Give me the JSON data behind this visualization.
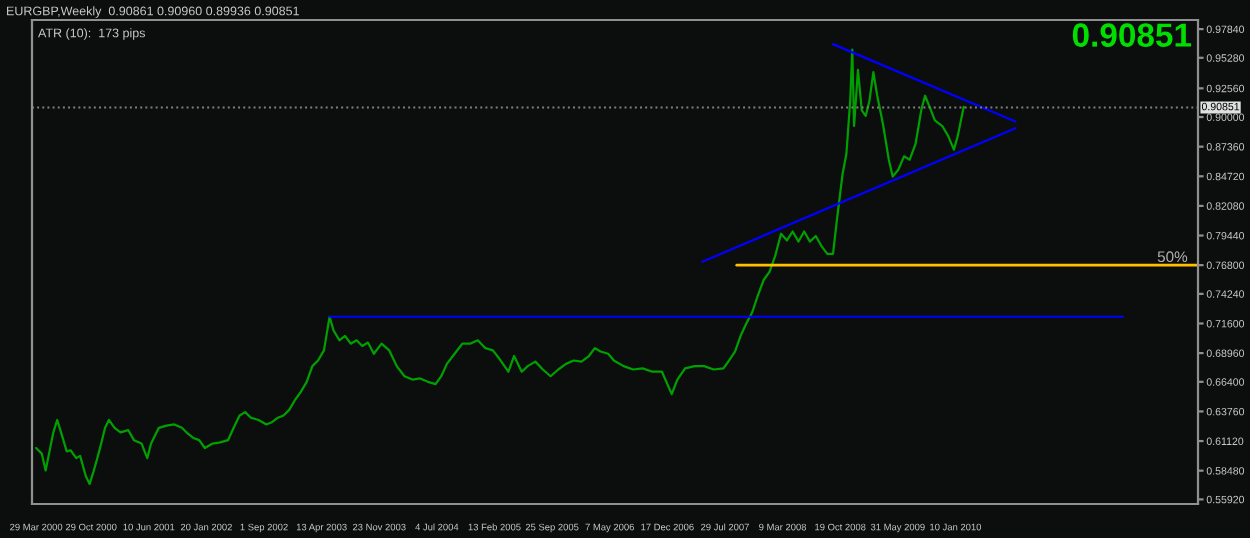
{
  "chart_data": {
    "type": "line",
    "title": "EURGBP,Weekly  0.90861 0.90960 0.89936 0.90851",
    "annotations": [
      "ATR (10):  173 pips",
      "0.90851"
    ],
    "xlim": [
      "2000-03-13",
      "2012-08-10"
    ],
    "xticks": [
      {
        "value": "2000-03-29",
        "label": "29 Mar 2000"
      },
      {
        "value": "2000-10-29",
        "label": "29 Oct 2000"
      },
      {
        "value": "2001-06-10",
        "label": "10 Jun 2001"
      },
      {
        "value": "2002-01-20",
        "label": "20 Jan 2002"
      },
      {
        "value": "2002-09-01",
        "label": "1 Sep 2002"
      },
      {
        "value": "2003-04-13",
        "label": "13 Apr 2003"
      },
      {
        "value": "2003-11-23",
        "label": "23 Nov 2003"
      },
      {
        "value": "2004-07-04",
        "label": "4 Jul 2004"
      },
      {
        "value": "2005-02-13",
        "label": "13 Feb 2005"
      },
      {
        "value": "2005-09-25",
        "label": "25 Sep 2005"
      },
      {
        "value": "2006-05-07",
        "label": "7 May 2006"
      },
      {
        "value": "2006-12-17",
        "label": "17 Dec 2006"
      },
      {
        "value": "2007-07-29",
        "label": "29 Jul 2007"
      },
      {
        "value": "2008-03-09",
        "label": "9 Mar 2008"
      },
      {
        "value": "2008-10-19",
        "label": "19 Oct 2008"
      },
      {
        "value": "2009-05-31",
        "label": "31 May 2009"
      },
      {
        "value": "2010-01-10",
        "label": "10 Jan 2010"
      }
    ],
    "ylim": [
      0.5551,
      0.9865
    ],
    "yticks": [
      {
        "value": 0.9784,
        "label": "0.97840"
      },
      {
        "value": 0.9528,
        "label": "0.95280"
      },
      {
        "value": 0.9256,
        "label": "0.92560"
      },
      {
        "value": 0.9,
        "label": "0.90000"
      },
      {
        "value": 0.8736,
        "label": "0.87360"
      },
      {
        "value": 0.8472,
        "label": "0.84720"
      },
      {
        "value": 0.8208,
        "label": "0.82080"
      },
      {
        "value": 0.7944,
        "label": "0.79440"
      },
      {
        "value": 0.768,
        "label": "0.76800"
      },
      {
        "value": 0.7424,
        "label": "0.74240"
      },
      {
        "value": 0.716,
        "label": "0.71600"
      },
      {
        "value": 0.6896,
        "label": "0.68960"
      },
      {
        "value": 0.664,
        "label": "0.66400"
      },
      {
        "value": 0.6376,
        "label": "0.63760"
      },
      {
        "value": 0.6112,
        "label": "0.61120"
      },
      {
        "value": 0.5848,
        "label": "0.58480"
      },
      {
        "value": 0.5592,
        "label": "0.55920"
      }
    ],
    "ref_lines": [
      {
        "axis": "y",
        "value": 0.90851,
        "label": "0.90851",
        "color": "#808080",
        "line_style": "dotted"
      }
    ],
    "series": [
      {
        "color": "#00a000",
        "x": [
          "2000-03-29",
          "2000-04-20",
          "2000-05-05",
          "2000-05-20",
          "2000-06-04",
          "2000-06-19",
          "2000-07-04",
          "2000-07-26",
          "2000-08-10",
          "2000-09-01",
          "2000-09-16",
          "2000-10-08",
          "2000-10-23",
          "2000-11-07",
          "2000-11-22",
          "2000-12-07",
          "2000-12-22",
          "2001-01-06",
          "2001-01-28",
          "2001-02-20",
          "2001-03-22",
          "2001-04-13",
          "2001-05-13",
          "2001-06-04",
          "2001-06-19",
          "2001-07-19",
          "2001-08-18",
          "2001-09-17",
          "2001-10-17",
          "2001-11-08",
          "2001-11-30",
          "2001-12-23",
          "2002-01-14",
          "2002-02-13",
          "2002-03-15",
          "2002-04-14",
          "2002-05-06",
          "2002-05-29",
          "2002-06-20",
          "2002-07-12",
          "2002-08-11",
          "2002-09-10",
          "2002-10-02",
          "2002-10-25",
          "2002-11-16",
          "2002-12-08",
          "2002-12-31",
          "2003-01-22",
          "2003-02-14",
          "2003-03-08",
          "2003-03-30",
          "2003-04-22",
          "2003-05-14",
          "2003-05-29",
          "2003-06-21",
          "2003-07-13",
          "2003-08-04",
          "2003-08-27",
          "2003-09-18",
          "2003-10-10",
          "2003-11-02",
          "2003-12-02",
          "2004-01-01",
          "2004-01-30",
          "2004-02-29",
          "2004-03-31",
          "2004-04-30",
          "2004-05-30",
          "2004-06-29",
          "2004-07-21",
          "2004-08-12",
          "2004-09-11",
          "2004-10-11",
          "2004-11-10",
          "2004-12-10",
          "2005-01-09",
          "2005-02-07",
          "2005-03-09",
          "2005-04-08",
          "2005-04-30",
          "2005-05-30",
          "2005-06-22",
          "2005-07-22",
          "2005-08-20",
          "2005-09-19",
          "2005-10-19",
          "2005-11-18",
          "2005-12-18",
          "2006-01-17",
          "2006-02-15",
          "2006-03-10",
          "2006-04-01",
          "2006-05-01",
          "2006-05-23",
          "2006-06-30",
          "2006-08-06",
          "2006-09-12",
          "2006-10-20",
          "2006-11-26",
          "2007-01-03",
          "2007-01-25",
          "2007-02-24",
          "2007-04-02",
          "2007-05-09",
          "2007-06-15",
          "2007-07-23",
          "2007-08-14",
          "2007-09-06",
          "2007-09-28",
          "2007-10-20",
          "2007-11-12",
          "2007-12-04",
          "2007-12-27",
          "2008-01-18",
          "2008-02-09",
          "2008-03-03",
          "2008-03-26",
          "2008-04-17",
          "2008-05-10",
          "2008-06-01",
          "2008-06-23",
          "2008-07-16",
          "2008-08-07",
          "2008-08-30",
          "2008-09-21",
          "2008-10-06",
          "2008-10-28",
          "2008-11-12",
          "2008-11-27",
          "2008-12-05",
          "2008-12-12",
          "2008-12-27",
          "2009-01-11",
          "2009-01-26",
          "2009-02-10",
          "2009-02-25",
          "2009-03-12",
          "2009-04-03",
          "2009-04-26",
          "2009-05-11",
          "2009-06-02",
          "2009-06-24",
          "2009-07-16",
          "2009-08-08",
          "2009-08-30",
          "2009-09-14",
          "2009-10-07",
          "2009-10-22",
          "2009-11-20",
          "2009-12-13",
          "2010-01-04",
          "2010-01-19",
          "2010-02-11"
        ],
        "values": [
          0.605,
          0.6,
          0.585,
          0.602,
          0.619,
          0.63,
          0.619,
          0.602,
          0.603,
          0.596,
          0.598,
          0.58,
          0.573,
          0.584,
          0.596,
          0.609,
          0.623,
          0.63,
          0.623,
          0.619,
          0.621,
          0.612,
          0.609,
          0.596,
          0.609,
          0.623,
          0.625,
          0.626,
          0.623,
          0.618,
          0.614,
          0.612,
          0.605,
          0.609,
          0.61,
          0.612,
          0.623,
          0.634,
          0.637,
          0.632,
          0.63,
          0.626,
          0.628,
          0.632,
          0.634,
          0.639,
          0.648,
          0.655,
          0.664,
          0.678,
          0.683,
          0.692,
          0.722,
          0.71,
          0.701,
          0.705,
          0.698,
          0.701,
          0.696,
          0.699,
          0.689,
          0.698,
          0.692,
          0.678,
          0.669,
          0.666,
          0.667,
          0.664,
          0.662,
          0.669,
          0.68,
          0.689,
          0.698,
          0.698,
          0.701,
          0.694,
          0.692,
          0.683,
          0.673,
          0.687,
          0.673,
          0.678,
          0.682,
          0.675,
          0.669,
          0.675,
          0.68,
          0.683,
          0.682,
          0.687,
          0.694,
          0.691,
          0.689,
          0.683,
          0.678,
          0.675,
          0.676,
          0.673,
          0.673,
          0.653,
          0.666,
          0.676,
          0.678,
          0.678,
          0.675,
          0.676,
          0.683,
          0.691,
          0.705,
          0.716,
          0.726,
          0.741,
          0.755,
          0.762,
          0.776,
          0.796,
          0.79,
          0.798,
          0.789,
          0.798,
          0.789,
          0.794,
          0.785,
          0.778,
          0.778,
          0.808,
          0.849,
          0.867,
          0.915,
          0.96,
          0.892,
          0.942,
          0.906,
          0.901,
          0.915,
          0.94,
          0.919,
          0.894,
          0.862,
          0.847,
          0.853,
          0.865,
          0.862,
          0.876,
          0.906,
          0.919,
          0.906,
          0.897,
          0.892,
          0.883,
          0.871,
          0.883,
          0.909
        ]
      },
      {
        "color": "#0000ff",
        "x": [
          "2003-05-14",
          "2011-10-23"
        ],
        "values": [
          0.722,
          0.722
        ]
      },
      {
        "color": "#0000ff",
        "x": [
          "2007-05-02",
          "2010-08-31"
        ],
        "values": [
          0.771,
          0.89
        ]
      },
      {
        "color": "#0000ff",
        "x": [
          "2008-09-21",
          "2010-08-31"
        ],
        "values": [
          0.965,
          0.896
        ]
      },
      {
        "name": "50%",
        "color": "#ffc000",
        "x": [
          "2007-09-13",
          "2012-08-10"
        ],
        "values": [
          0.768,
          0.768
        ]
      }
    ]
  }
}
